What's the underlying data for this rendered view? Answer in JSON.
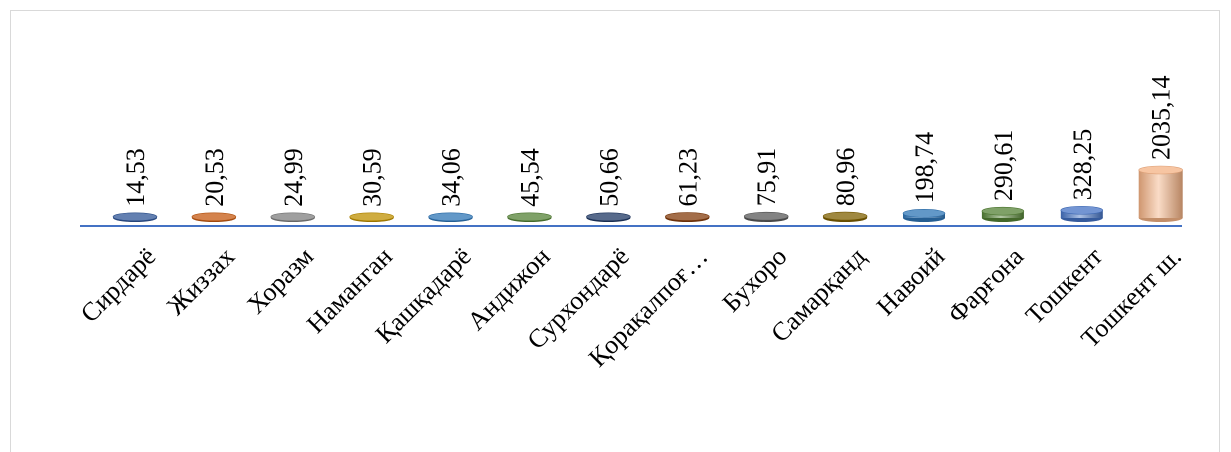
{
  "chart_data": {
    "type": "bar",
    "style": "3d-cylinder",
    "title": "",
    "xlabel": "",
    "ylabel": "",
    "categories": [
      "Сирдарё",
      "Жиззах",
      "Хоразм",
      "Наманган",
      "Қашқадарё",
      "Андижон",
      "Сурхондарё",
      "Қорақалпоғ…",
      "Бухоро",
      "Самарқанд",
      "Навоий",
      "Фарғона",
      "Тошкент",
      "Тошкент ш."
    ],
    "value_labels": [
      "14,53",
      "20,53",
      "24,99",
      "30,59",
      "34,06",
      "45,54",
      "50,66",
      "61,23",
      "75,91",
      "80,96",
      "198,74",
      "290,61",
      "328,25",
      "2035,14"
    ],
    "values": [
      14.53,
      20.53,
      24.99,
      30.59,
      34.06,
      45.54,
      50.66,
      61.23,
      75.91,
      80.96,
      198.74,
      290.61,
      328.25,
      2035.14
    ],
    "colors": [
      "#2f5597",
      "#c55a11",
      "#7f7f7f",
      "#bf9000",
      "#2e75b6",
      "#548235",
      "#1f3864",
      "#843c0c",
      "#595959",
      "#7f6000",
      "#2e75b6",
      "#548235",
      "#4472c4",
      "#f4b183"
    ],
    "ylim": [
      0,
      2035.14
    ],
    "grid": false,
    "legend": "none",
    "axis_color": "#4472c4"
  }
}
